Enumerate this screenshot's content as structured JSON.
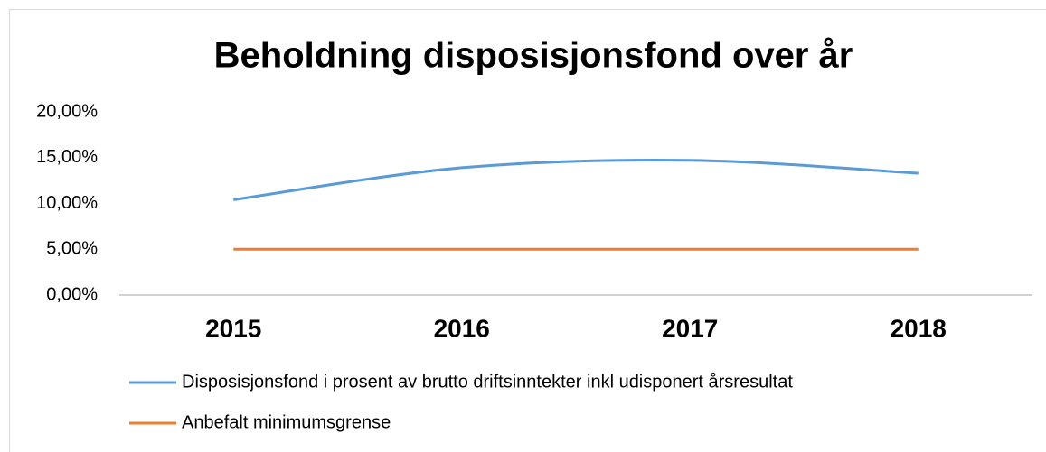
{
  "chart_data": {
    "type": "line",
    "title": "Beholdning disposisjonsfond over år",
    "categories": [
      "2015",
      "2016",
      "2017",
      "2018"
    ],
    "series": [
      {
        "name": "Disposisjonsfond i prosent av brutto driftsinntekter inkl udisponert årsresultat",
        "color": "#5b9bd5",
        "values": [
          10.4,
          13.9,
          14.7,
          13.3
        ]
      },
      {
        "name": "Anbefalt minimumsgrense",
        "color": "#ed7d31",
        "values": [
          5,
          5,
          5,
          5
        ]
      }
    ],
    "ylim": [
      0,
      20
    ],
    "yticks": [
      {
        "value": 0,
        "label": "0,00%"
      },
      {
        "value": 5,
        "label": "5,00%"
      },
      {
        "value": 10,
        "label": "10,00%"
      },
      {
        "value": 15,
        "label": "15,00%"
      },
      {
        "value": 20,
        "label": "20,00%"
      }
    ],
    "smooth": true,
    "grid": false,
    "legend": "bottom"
  }
}
